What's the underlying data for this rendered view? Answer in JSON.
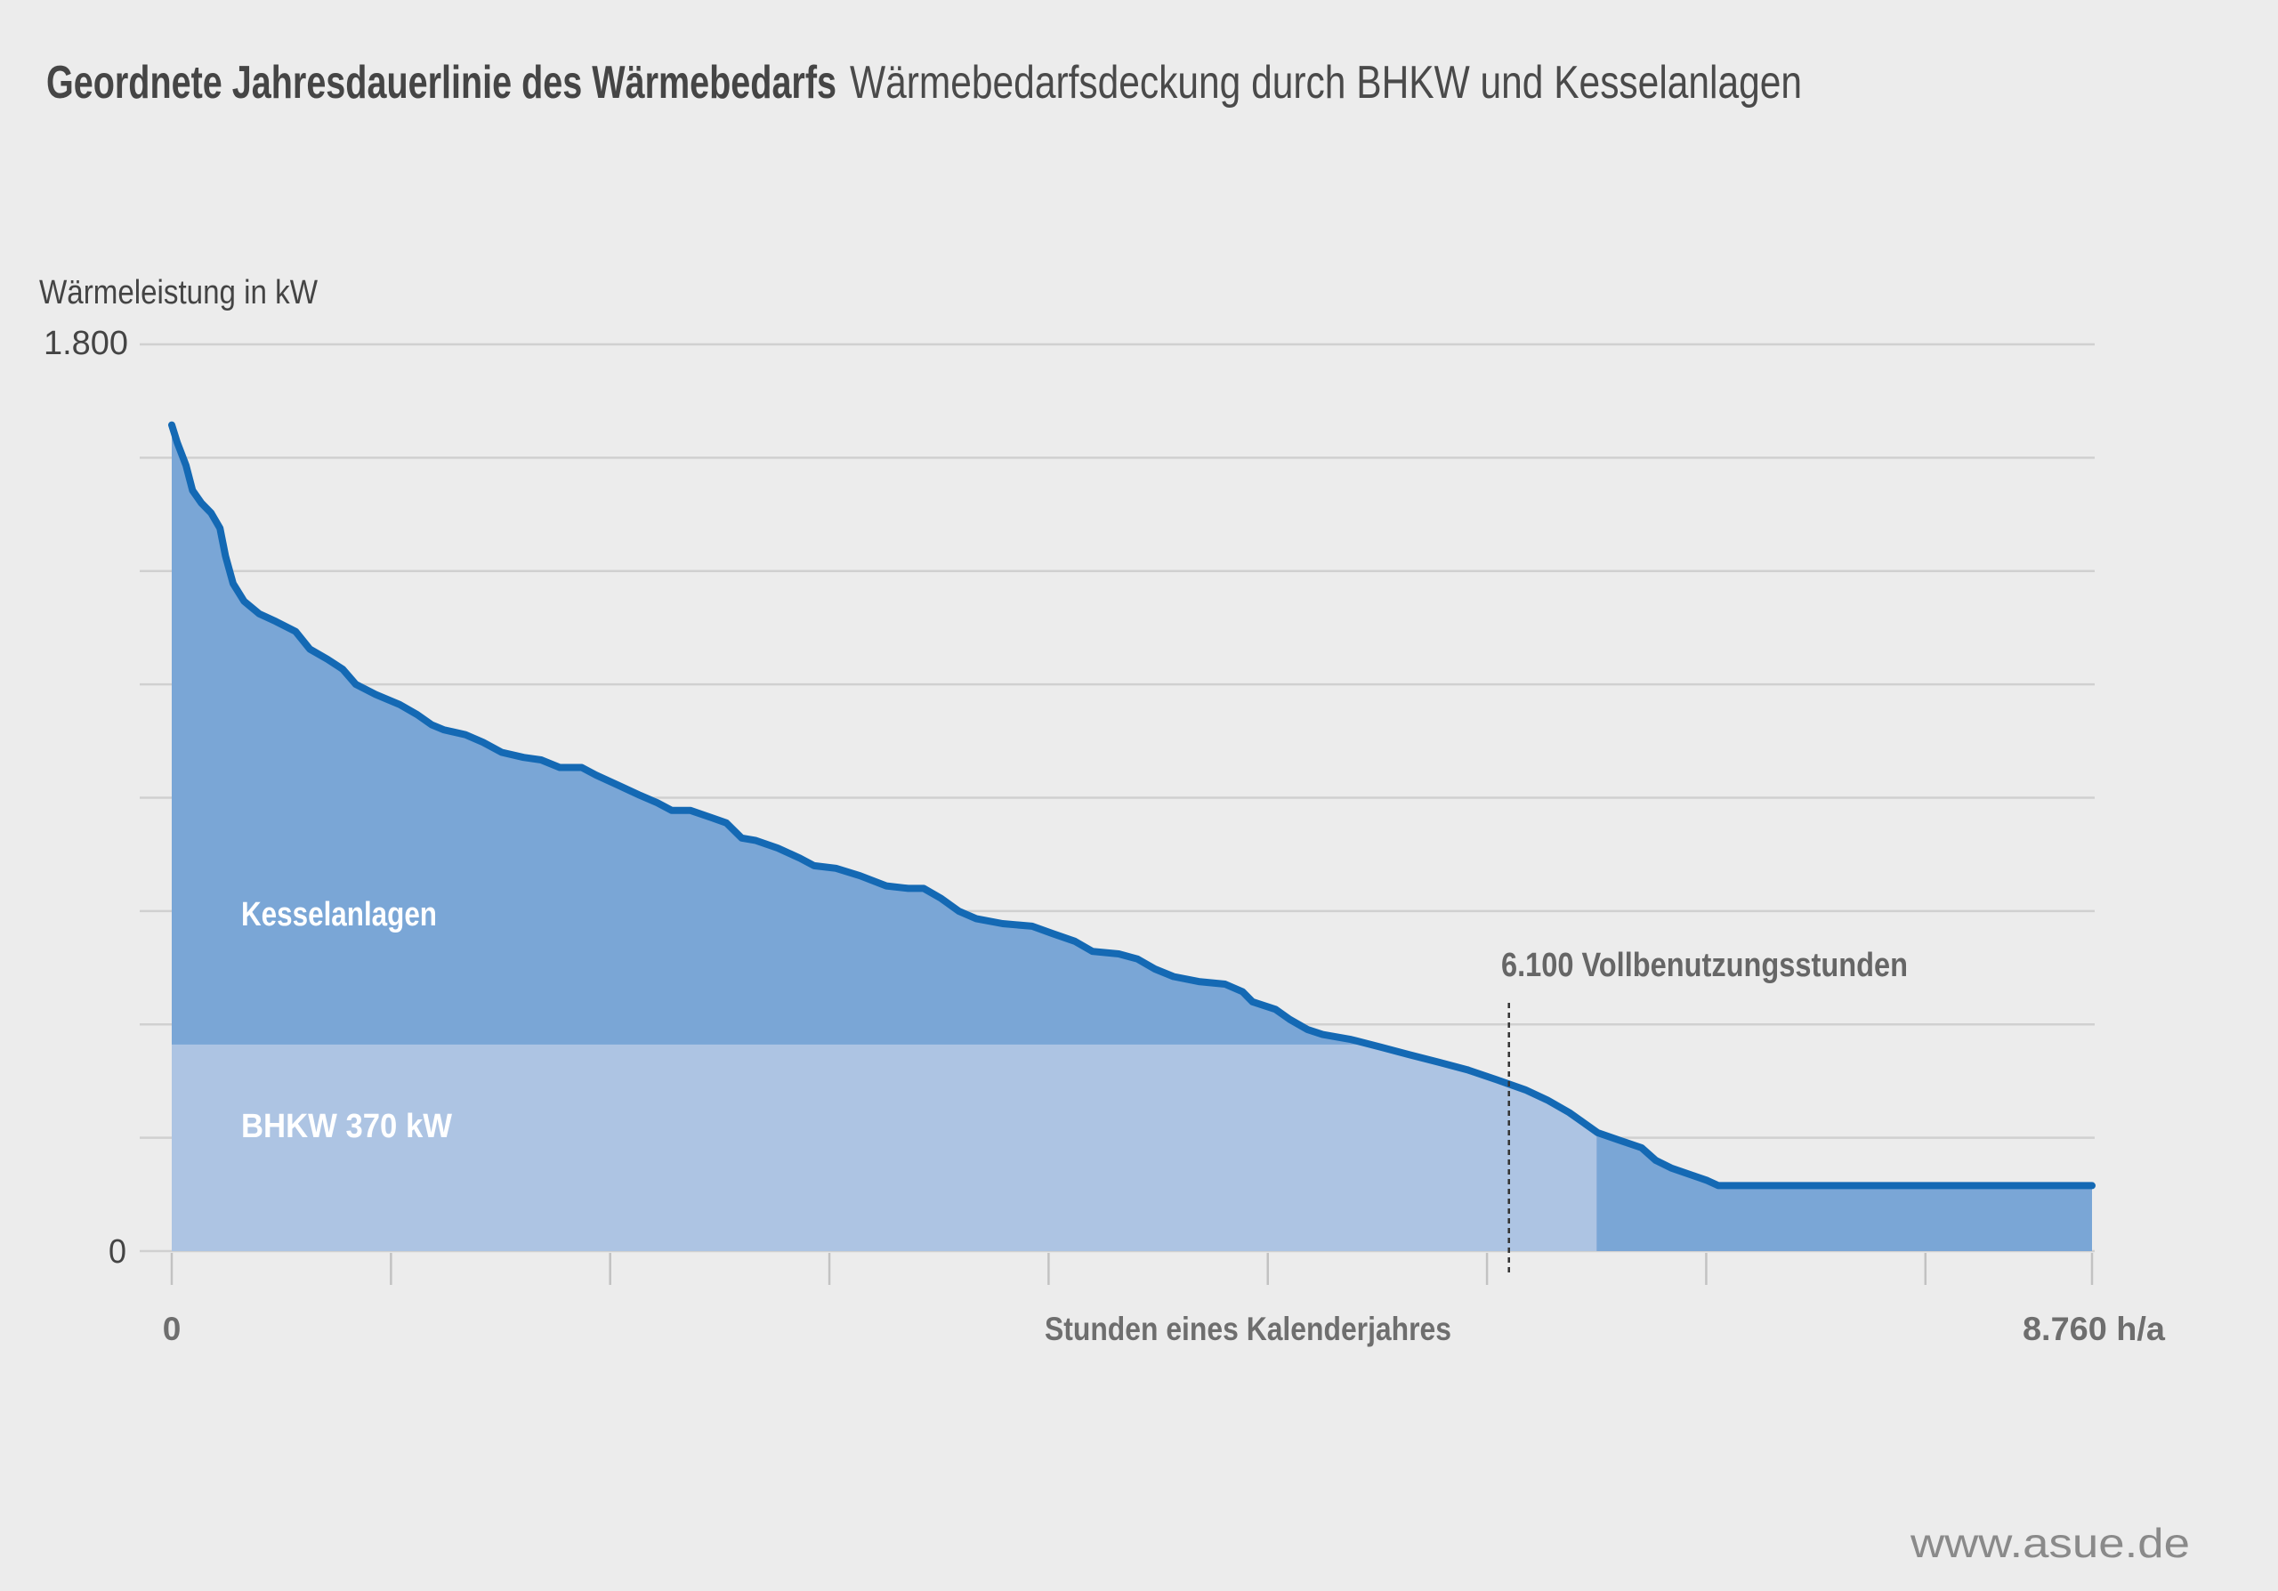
{
  "chart_data": {
    "type": "area",
    "title": "Geordnete Jahresdauerlinie des Wärmebedarfs",
    "subtitle": "Wärmebedarfsdeckung durch BHKW und Kesselanlagen",
    "ylabel": "Wärmeleistung in kW",
    "xlabel": "Stunden eines Kalenderjahres",
    "xlim": [
      0,
      8760
    ],
    "ylim": [
      0,
      1800
    ],
    "y_tick_labels": [
      "0",
      "1.800"
    ],
    "x_tick_labels": [
      "0",
      "8.760 h/a"
    ],
    "y_gridlines": [
      0,
      225,
      450,
      675,
      900,
      1125,
      1350,
      1575,
      1800
    ],
    "x_ticks": [
      0,
      1000,
      2000,
      3000,
      4000,
      5000,
      6000,
      7000,
      8000,
      8760
    ],
    "grid": true,
    "duration_curve": {
      "hours": [
        0,
        25,
        65,
        95,
        135,
        180,
        220,
        245,
        280,
        330,
        400,
        475,
        565,
        630,
        710,
        780,
        840,
        930,
        1040,
        1120,
        1185,
        1240,
        1340,
        1420,
        1505,
        1605,
        1685,
        1770,
        1870,
        1935,
        2035,
        2135,
        2215,
        2280,
        2365,
        2465,
        2530,
        2600,
        2665,
        2765,
        2865,
        2930,
        3030,
        3140,
        3260,
        3360,
        3430,
        3510,
        3590,
        3670,
        3790,
        3925,
        4020,
        4120,
        4200,
        4320,
        4405,
        4485,
        4570,
        4685,
        4805,
        4885,
        4930,
        5035,
        5100,
        5180,
        5250,
        5380,
        5515,
        5645,
        5780,
        5910,
        6045,
        6175,
        6275,
        6375,
        6440,
        6505,
        6605,
        6705,
        6770,
        6840,
        6940,
        7005,
        7055,
        8760
      ],
      "kw": [
        1640,
        1605,
        1560,
        1510,
        1485,
        1465,
        1435,
        1380,
        1325,
        1290,
        1265,
        1250,
        1230,
        1195,
        1175,
        1155,
        1125,
        1105,
        1085,
        1065,
        1045,
        1035,
        1025,
        1010,
        990,
        980,
        975,
        960,
        960,
        945,
        925,
        905,
        890,
        875,
        875,
        860,
        850,
        820,
        815,
        800,
        780,
        765,
        760,
        745,
        725,
        720,
        720,
        700,
        675,
        660,
        650,
        645,
        630,
        615,
        595,
        590,
        580,
        560,
        545,
        535,
        530,
        515,
        495,
        480,
        460,
        440,
        430,
        420,
        405,
        390,
        375,
        360,
        340,
        320,
        300,
        275,
        255,
        235,
        220,
        205,
        180,
        165,
        150,
        140,
        130,
        130
      ]
    },
    "areas": [
      {
        "label": "Kesselanlagen",
        "color": "#7aa6d6"
      },
      {
        "label": "BHKW 370 kW",
        "color": "#adc4e3",
        "level_kw": 410,
        "until_hours": 6500
      }
    ],
    "annotation": {
      "text": "6.100 Vollbenutzungsstunden",
      "hours": 6100
    },
    "colors": {
      "background": "#ececec",
      "curve": "#1469b4",
      "grid": "#d0d0d0",
      "tick": "#c2c2c2",
      "marker": "#333333"
    }
  },
  "footer": {
    "url": "www.asue.de"
  }
}
